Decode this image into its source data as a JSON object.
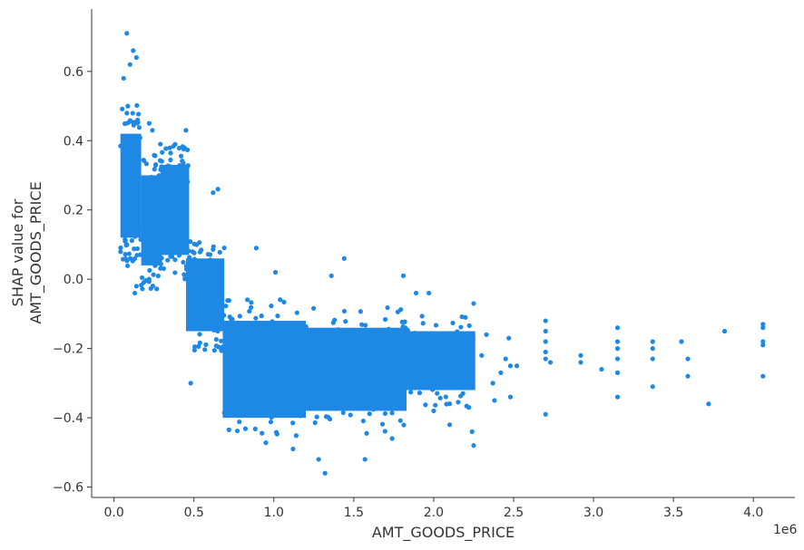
{
  "chart_data": {
    "type": "scatter",
    "xlabel": "AMT_GOODS_PRICE",
    "ylabel_lines": [
      "SHAP value for",
      "AMT_GOODS_PRICE"
    ],
    "x_offset_text": "1e6",
    "xlim": [
      -0.14,
      4.26
    ],
    "ylim": [
      -0.63,
      0.78
    ],
    "x_ticks": [
      0.0,
      0.5,
      1.0,
      1.5,
      2.0,
      2.5,
      3.0,
      3.5,
      4.0
    ],
    "x_tick_labels": [
      "0.0",
      "0.5",
      "1.0",
      "1.5",
      "2.0",
      "2.5",
      "3.0",
      "3.5",
      "4.0"
    ],
    "y_ticks": [
      0.6,
      0.4,
      0.2,
      0.0,
      -0.2,
      -0.4,
      -0.6
    ],
    "y_tick_labels": [
      "0.6",
      "0.4",
      "0.2",
      "0.0",
      "−0.2",
      "−0.4",
      "−0.6"
    ],
    "grid": false,
    "colors": {
      "points": "#1E88E5",
      "axis": "#333333"
    },
    "clusters": [
      {
        "x": [
          0.04,
          0.17
        ],
        "y": [
          0.12,
          0.42
        ]
      },
      {
        "x": [
          0.17,
          0.3
        ],
        "y": [
          0.04,
          0.3
        ]
      },
      {
        "x": [
          0.3,
          0.47
        ],
        "y": [
          0.07,
          0.33
        ]
      },
      {
        "x": [
          0.45,
          0.69
        ],
        "y": [
          -0.15,
          0.06
        ]
      },
      {
        "x": [
          0.68,
          1.2
        ],
        "y": [
          -0.4,
          -0.12
        ]
      },
      {
        "x": [
          1.2,
          1.83
        ],
        "y": [
          -0.38,
          -0.14
        ]
      },
      {
        "x": [
          1.8,
          2.26
        ],
        "y": [
          -0.32,
          -0.15
        ]
      }
    ],
    "points": [
      [
        0.08,
        0.71
      ],
      [
        0.12,
        0.66
      ],
      [
        0.1,
        0.62
      ],
      [
        0.06,
        0.58
      ],
      [
        0.14,
        0.64
      ],
      [
        0.22,
        0.45
      ],
      [
        0.24,
        0.43
      ],
      [
        0.29,
        0.39
      ],
      [
        0.45,
        0.43
      ],
      [
        0.44,
        0.38
      ],
      [
        0.65,
        0.26
      ],
      [
        0.62,
        0.25
      ],
      [
        0.13,
        -0.04
      ],
      [
        0.14,
        -0.02
      ],
      [
        0.48,
        -0.3
      ],
      [
        0.89,
        0.09
      ],
      [
        1.01,
        0.02
      ],
      [
        1.44,
        0.06
      ],
      [
        1.36,
        0.01
      ],
      [
        1.81,
        0.01
      ],
      [
        1.89,
        -0.04
      ],
      [
        1.97,
        -0.04
      ],
      [
        1.32,
        -0.56
      ],
      [
        1.28,
        -0.52
      ],
      [
        1.57,
        -0.52
      ],
      [
        1.12,
        -0.49
      ],
      [
        1.74,
        -0.46
      ],
      [
        2.0,
        -0.38
      ],
      [
        2.1,
        -0.42
      ],
      [
        2.25,
        -0.07
      ],
      [
        2.25,
        -0.48
      ],
      [
        2.24,
        -0.44
      ],
      [
        2.22,
        -0.37
      ],
      [
        2.3,
        -0.22
      ],
      [
        2.33,
        -0.16
      ],
      [
        2.37,
        -0.3
      ],
      [
        2.38,
        -0.35
      ],
      [
        2.42,
        -0.27
      ],
      [
        2.45,
        -0.23
      ],
      [
        2.47,
        -0.17
      ],
      [
        2.48,
        -0.25
      ],
      [
        2.48,
        -0.34
      ],
      [
        2.52,
        -0.25
      ],
      [
        2.7,
        -0.12
      ],
      [
        2.7,
        -0.15
      ],
      [
        2.7,
        -0.18
      ],
      [
        2.7,
        -0.21
      ],
      [
        2.7,
        -0.23
      ],
      [
        2.7,
        -0.39
      ],
      [
        2.73,
        -0.24
      ],
      [
        2.92,
        -0.22
      ],
      [
        2.92,
        -0.24
      ],
      [
        3.05,
        -0.26
      ],
      [
        3.15,
        -0.14
      ],
      [
        3.15,
        -0.18
      ],
      [
        3.15,
        -0.2
      ],
      [
        3.15,
        -0.23
      ],
      [
        3.15,
        -0.27
      ],
      [
        3.15,
        -0.34
      ],
      [
        3.37,
        -0.18
      ],
      [
        3.37,
        -0.2
      ],
      [
        3.37,
        -0.23
      ],
      [
        3.37,
        -0.31
      ],
      [
        3.55,
        -0.18
      ],
      [
        3.59,
        -0.23
      ],
      [
        3.59,
        -0.28
      ],
      [
        3.72,
        -0.36
      ],
      [
        3.82,
        -0.15
      ],
      [
        4.06,
        -0.13
      ],
      [
        4.06,
        -0.14
      ],
      [
        4.06,
        -0.18
      ],
      [
        4.06,
        -0.19
      ],
      [
        4.06,
        -0.28
      ]
    ]
  }
}
